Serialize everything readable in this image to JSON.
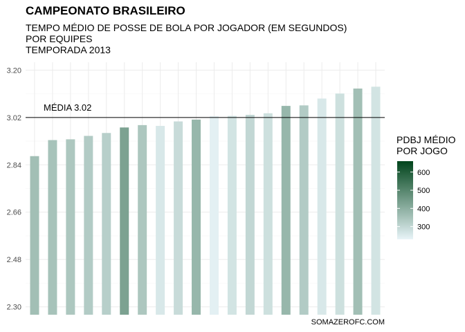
{
  "title": "CAMPEONATO BRASILEIRO",
  "subtitle_lines": [
    "TEMPO MÉDIO DE POSSE DE BOLA POR JOGADOR (EM SEGUNDOS)",
    "POR EQUIPES",
    "TEMPORADA 2013"
  ],
  "caption": "SOMAZEROFC.COM",
  "legend": {
    "title_lines": [
      "PDBJ MÉDIO",
      "POR JOGO"
    ],
    "ticks": [
      300,
      400,
      500,
      600
    ],
    "range": [
      230,
      660
    ],
    "color_low": "#e8f4f8",
    "color_high": "#00441b"
  },
  "chart_data": {
    "type": "bar",
    "x": [
      1,
      2,
      3,
      4,
      5,
      6,
      7,
      8,
      9,
      10,
      11,
      12,
      13,
      14,
      15,
      16,
      17,
      18,
      19,
      20
    ],
    "values": [
      2.873,
      2.934,
      2.937,
      2.95,
      2.961,
      2.982,
      2.991,
      2.988,
      3.005,
      3.012,
      3.025,
      3.026,
      3.03,
      3.036,
      3.064,
      3.066,
      3.092,
      3.111,
      3.13,
      3.137
    ],
    "fill_values": [
      360,
      350,
      340,
      330,
      320,
      430,
      340,
      260,
      290,
      380,
      240,
      270,
      300,
      280,
      380,
      330,
      260,
      280,
      360,
      270
    ],
    "ylim": [
      2.27,
      3.23
    ],
    "yticks": [
      2.3,
      2.48,
      2.66,
      2.84,
      3.02,
      3.2
    ],
    "ytick_labels": [
      "2.30",
      "2.48",
      "2.66",
      "2.84",
      "3.02",
      "3.20"
    ],
    "mean_line": 3.02,
    "mean_label": "MÉDIA  3.02",
    "grid": true,
    "legend_position": "right"
  }
}
